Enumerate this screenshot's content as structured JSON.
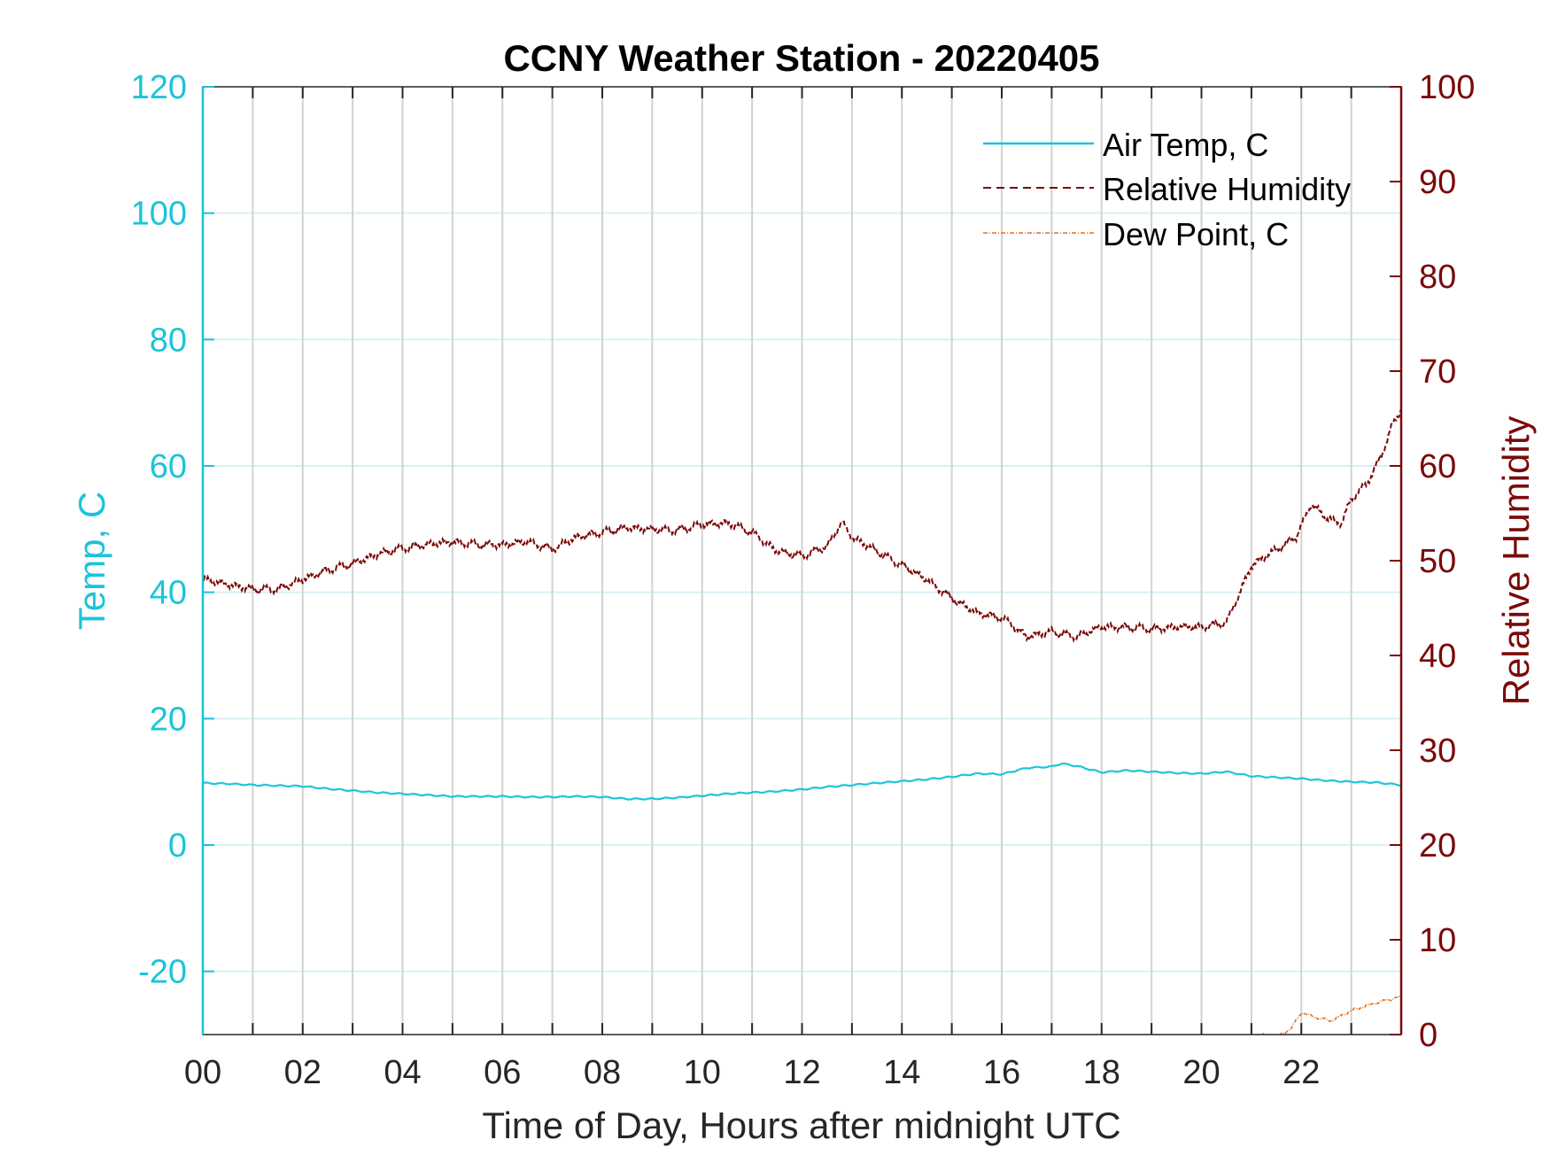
{
  "chart_data": {
    "type": "line",
    "title": "CCNY Weather Station - 20220405",
    "xlabel": "Time of Day, Hours after midnight UTC",
    "ylabel_left": "Temp, C",
    "ylabel_right": "Relative Humidity",
    "xlim": [
      0,
      24
    ],
    "ylim_left": [
      -30,
      120
    ],
    "ylim_right": [
      0,
      100
    ],
    "x_ticks": [
      0,
      2,
      4,
      6,
      8,
      10,
      12,
      14,
      16,
      18,
      20,
      22
    ],
    "x_tick_labels": [
      "00",
      "02",
      "04",
      "06",
      "08",
      "10",
      "12",
      "14",
      "16",
      "18",
      "20",
      "22"
    ],
    "y_left_ticks": [
      -20,
      0,
      20,
      40,
      60,
      80,
      100,
      120
    ],
    "y_left_tick_labels": [
      "-20",
      "0",
      "20",
      "40",
      "60",
      "80",
      "100",
      "120"
    ],
    "y_right_ticks": [
      0,
      10,
      20,
      30,
      40,
      50,
      60,
      70,
      80,
      90,
      100
    ],
    "y_right_tick_labels": [
      "0",
      "10",
      "20",
      "30",
      "40",
      "50",
      "60",
      "70",
      "80",
      "90",
      "100"
    ],
    "grid": true,
    "legend_position": "top-right",
    "colors": {
      "temp": "#1bc4d8",
      "rh": "#7a0a0a",
      "dew": "#e0701e",
      "axis": "#262626",
      "vgrid": "#d2d2d2",
      "hgrid": "#d6f1f6"
    },
    "series": [
      {
        "name": "Air Temp, C",
        "axis": "left",
        "style": "solid",
        "x": [
          0,
          0.5,
          1,
          1.5,
          2,
          2.5,
          3,
          3.5,
          4,
          4.5,
          5,
          5.5,
          6,
          6.5,
          7,
          7.5,
          8,
          8.5,
          9,
          9.5,
          10,
          10.5,
          11,
          11.5,
          12,
          12.5,
          13,
          13.5,
          14,
          14.5,
          15,
          15.5,
          16,
          16.5,
          17,
          17.2,
          17.5,
          18,
          18.5,
          19,
          19.5,
          20,
          20.5,
          21,
          21.5,
          22,
          22.5,
          23,
          23.5,
          24
        ],
        "y": [
          9.8,
          9.7,
          9.5,
          9.4,
          9.3,
          8.9,
          8.6,
          8.3,
          8.1,
          7.9,
          7.7,
          7.7,
          7.7,
          7.6,
          7.6,
          7.7,
          7.6,
          7.3,
          7.3,
          7.5,
          7.8,
          8.1,
          8.3,
          8.5,
          8.8,
          9.2,
          9.5,
          9.8,
          10.1,
          10.4,
          10.8,
          11.3,
          11.2,
          12.2,
          12.4,
          12.9,
          12.5,
          11.5,
          11.8,
          11.6,
          11.4,
          11.3,
          11.6,
          10.9,
          10.7,
          10.5,
          10.2,
          10.0,
          9.9,
          9.5
        ]
      },
      {
        "name": "Relative Humidity",
        "axis": "right",
        "style": "dashed",
        "x": [
          0,
          0.5,
          1,
          1.5,
          2,
          2.5,
          3,
          3.5,
          4,
          4.5,
          5,
          5.5,
          6,
          6.5,
          7,
          7.5,
          8,
          8.5,
          9,
          9.5,
          10,
          10.5,
          11,
          11.5,
          12,
          12.5,
          12.8,
          13,
          13.5,
          14,
          14.5,
          15,
          15.5,
          16,
          16.5,
          17,
          17.5,
          18,
          18.5,
          19,
          19.5,
          20,
          20.5,
          20.8,
          21,
          21.3,
          21.6,
          21.9,
          22.2,
          22.5,
          22.8,
          23,
          23.3,
          23.6,
          23.8,
          24
        ],
        "y": [
          48,
          47.5,
          47,
          47,
          48,
          49,
          49.7,
          50.7,
          51.3,
          51.7,
          52,
          51.7,
          51.7,
          52,
          51.2,
          52.5,
          53,
          53.5,
          53.3,
          53.2,
          53.8,
          54,
          53,
          51,
          50.5,
          51.5,
          54,
          52.5,
          51,
          49.5,
          48,
          46,
          44.5,
          44,
          42,
          42.5,
          42,
          43,
          43,
          42.8,
          43,
          43,
          43.5,
          47,
          49.5,
          50.5,
          51.5,
          52.5,
          56,
          54.5,
          54,
          56.5,
          58,
          61,
          64,
          66
        ]
      },
      {
        "name": "Dew Point, C",
        "axis": "left",
        "style": "dash-dot",
        "x": [
          21.2,
          21.5,
          21.8,
          22,
          22.3,
          22.6,
          23,
          23.5,
          24
        ],
        "y": [
          -30,
          -30.5,
          -29,
          -26.5,
          -27.3,
          -27.8,
          -26.2,
          -25,
          -24
        ]
      }
    ]
  }
}
